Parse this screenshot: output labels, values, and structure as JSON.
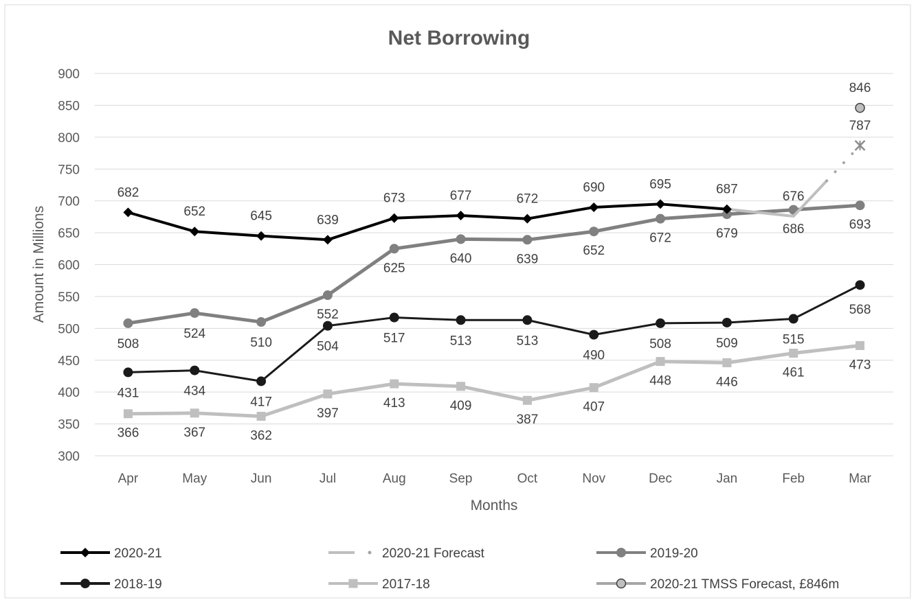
{
  "chart_data": {
    "type": "line",
    "title": "Net Borrowing",
    "xlabel": "Months",
    "ylabel": "Amount in  Millions",
    "ylim": [
      300,
      900
    ],
    "yticks": [
      300,
      350,
      400,
      450,
      500,
      550,
      600,
      650,
      700,
      750,
      800,
      850,
      900
    ],
    "grid": true,
    "legend_position": "bottom",
    "categories": [
      "Apr",
      "May",
      "Jun",
      "Jul",
      "Aug",
      "Sep",
      "Oct",
      "Nov",
      "Dec",
      "Jan",
      "Feb",
      "Mar"
    ],
    "series": [
      {
        "name": "2020-21",
        "color": "#000000",
        "marker": "diamond",
        "line_style": "solid",
        "values": [
          682,
          652,
          645,
          639,
          673,
          677,
          672,
          690,
          695,
          687,
          null,
          null
        ],
        "labels": [
          "682",
          "652",
          "645",
          "639",
          "673",
          "677",
          "672",
          "690",
          "695",
          "687",
          null,
          null
        ]
      },
      {
        "name": "2020-21 Forecast",
        "color": "#bfbfbf",
        "marker": "x",
        "line_style": "mixed",
        "values": [
          null,
          null,
          null,
          null,
          null,
          null,
          null,
          null,
          null,
          687,
          676,
          787
        ],
        "labels": [
          null,
          null,
          null,
          null,
          null,
          null,
          null,
          null,
          null,
          null,
          "676",
          "787"
        ]
      },
      {
        "name": "2019-20",
        "color": "#808080",
        "marker": "circle",
        "line_style": "solid",
        "values": [
          508,
          524,
          510,
          552,
          625,
          640,
          639,
          652,
          672,
          679,
          686,
          693
        ],
        "labels": [
          "508",
          "524",
          "510",
          "552",
          "625",
          "640",
          "639",
          "652",
          "672",
          "679",
          "686",
          "693"
        ]
      },
      {
        "name": "2018-19",
        "color": "#1a1a1a",
        "marker": "circle",
        "line_style": "solid",
        "values": [
          431,
          434,
          417,
          504,
          517,
          513,
          513,
          490,
          508,
          509,
          515,
          568
        ],
        "labels": [
          "431",
          "434",
          "417",
          "504",
          "517",
          "513",
          "513",
          "490",
          "508",
          "509",
          "515",
          "568"
        ]
      },
      {
        "name": "2017-18",
        "color": "#bfbfbf",
        "marker": "square",
        "line_style": "solid",
        "values": [
          366,
          367,
          362,
          397,
          413,
          409,
          387,
          407,
          448,
          446,
          461,
          473
        ],
        "labels": [
          "366",
          "367",
          "362",
          "397",
          "413",
          "409",
          "387",
          "407",
          "448",
          "446",
          "461",
          "473"
        ]
      },
      {
        "name": "2020-21 TMSS Forecast, £846m",
        "color": "#a6a6a6",
        "marker": "circle-outline",
        "line_style": "solid",
        "values": [
          null,
          null,
          null,
          null,
          null,
          null,
          null,
          null,
          null,
          null,
          null,
          846
        ],
        "labels": [
          null,
          null,
          null,
          null,
          null,
          null,
          null,
          null,
          null,
          null,
          null,
          "846"
        ]
      }
    ]
  }
}
